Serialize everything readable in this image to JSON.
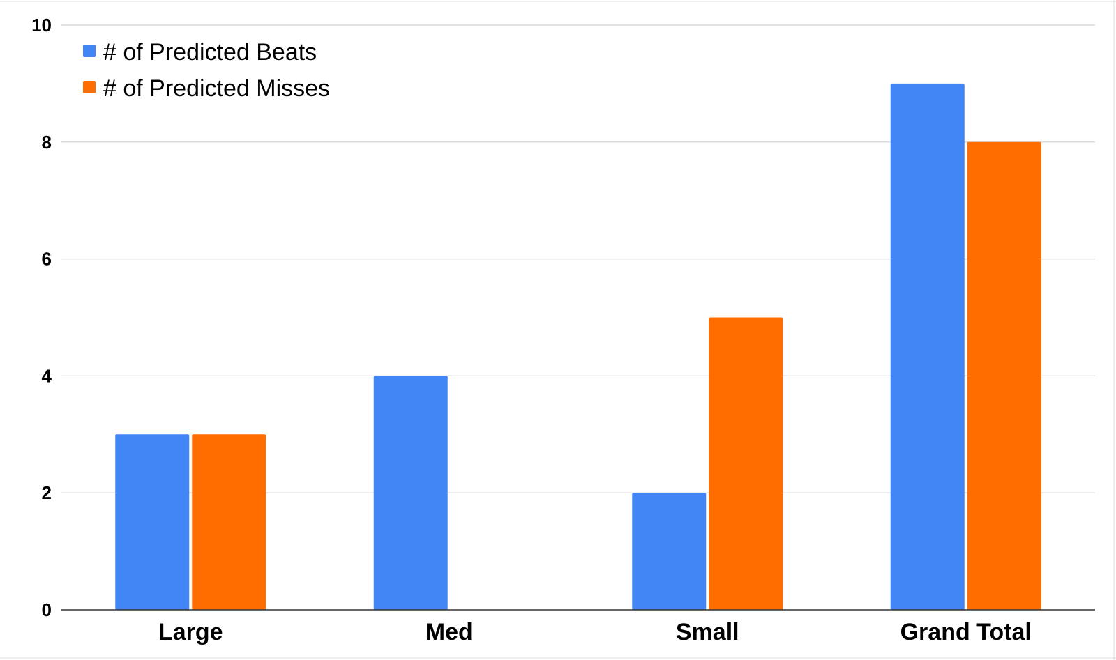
{
  "colors": {
    "beats": "#4285f4",
    "misses": "#ff6d01"
  },
  "chart_data": {
    "type": "bar",
    "categories": [
      "Large",
      "Med",
      "Small",
      "Grand Total"
    ],
    "series": [
      {
        "name": "# of Predicted Beats",
        "values": [
          3,
          4,
          2,
          9
        ],
        "color": "#4285f4"
      },
      {
        "name": "# of Predicted Misses",
        "values": [
          3,
          0,
          5,
          8
        ],
        "color": "#ff6d01"
      }
    ],
    "title": "",
    "xlabel": "",
    "ylabel": "",
    "ylim": [
      0,
      10
    ],
    "yticks": [
      0,
      2,
      4,
      6,
      8,
      10
    ],
    "grid": true,
    "legend_position": "top-left"
  }
}
